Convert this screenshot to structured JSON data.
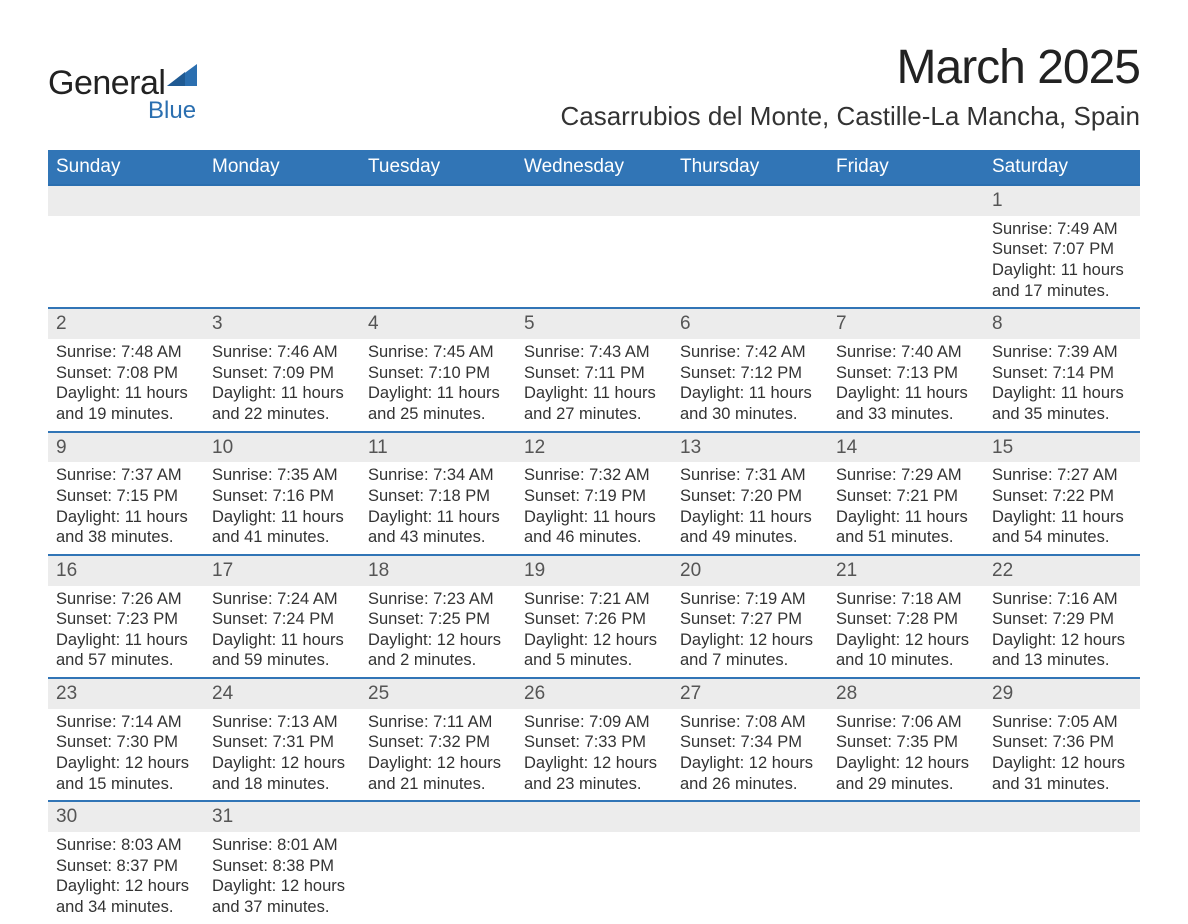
{
  "logo": {
    "main": "General",
    "sub": "Blue",
    "shape_color": "#2b6fb0"
  },
  "title": "March 2025",
  "location": "Casarrubios del Monte, Castille-La Mancha, Spain",
  "header_bg": "#3175b6",
  "header_fg": "#ffffff",
  "daynum_bg": "#ececec",
  "border_color": "#3175b6",
  "text_color": "#333333",
  "dayname_fontsize": 19,
  "body_fontsize": 16.5,
  "title_fontsize": 48,
  "location_fontsize": 26,
  "weekdays": [
    "Sunday",
    "Monday",
    "Tuesday",
    "Wednesday",
    "Thursday",
    "Friday",
    "Saturday"
  ],
  "weeks": [
    [
      null,
      null,
      null,
      null,
      null,
      null,
      {
        "n": "1",
        "sunrise": "7:49 AM",
        "sunset": "7:07 PM",
        "daylight": "11 hours and 17 minutes."
      }
    ],
    [
      {
        "n": "2",
        "sunrise": "7:48 AM",
        "sunset": "7:08 PM",
        "daylight": "11 hours and 19 minutes."
      },
      {
        "n": "3",
        "sunrise": "7:46 AM",
        "sunset": "7:09 PM",
        "daylight": "11 hours and 22 minutes."
      },
      {
        "n": "4",
        "sunrise": "7:45 AM",
        "sunset": "7:10 PM",
        "daylight": "11 hours and 25 minutes."
      },
      {
        "n": "5",
        "sunrise": "7:43 AM",
        "sunset": "7:11 PM",
        "daylight": "11 hours and 27 minutes."
      },
      {
        "n": "6",
        "sunrise": "7:42 AM",
        "sunset": "7:12 PM",
        "daylight": "11 hours and 30 minutes."
      },
      {
        "n": "7",
        "sunrise": "7:40 AM",
        "sunset": "7:13 PM",
        "daylight": "11 hours and 33 minutes."
      },
      {
        "n": "8",
        "sunrise": "7:39 AM",
        "sunset": "7:14 PM",
        "daylight": "11 hours and 35 minutes."
      }
    ],
    [
      {
        "n": "9",
        "sunrise": "7:37 AM",
        "sunset": "7:15 PM",
        "daylight": "11 hours and 38 minutes."
      },
      {
        "n": "10",
        "sunrise": "7:35 AM",
        "sunset": "7:16 PM",
        "daylight": "11 hours and 41 minutes."
      },
      {
        "n": "11",
        "sunrise": "7:34 AM",
        "sunset": "7:18 PM",
        "daylight": "11 hours and 43 minutes."
      },
      {
        "n": "12",
        "sunrise": "7:32 AM",
        "sunset": "7:19 PM",
        "daylight": "11 hours and 46 minutes."
      },
      {
        "n": "13",
        "sunrise": "7:31 AM",
        "sunset": "7:20 PM",
        "daylight": "11 hours and 49 minutes."
      },
      {
        "n": "14",
        "sunrise": "7:29 AM",
        "sunset": "7:21 PM",
        "daylight": "11 hours and 51 minutes."
      },
      {
        "n": "15",
        "sunrise": "7:27 AM",
        "sunset": "7:22 PM",
        "daylight": "11 hours and 54 minutes."
      }
    ],
    [
      {
        "n": "16",
        "sunrise": "7:26 AM",
        "sunset": "7:23 PM",
        "daylight": "11 hours and 57 minutes."
      },
      {
        "n": "17",
        "sunrise": "7:24 AM",
        "sunset": "7:24 PM",
        "daylight": "11 hours and 59 minutes."
      },
      {
        "n": "18",
        "sunrise": "7:23 AM",
        "sunset": "7:25 PM",
        "daylight": "12 hours and 2 minutes."
      },
      {
        "n": "19",
        "sunrise": "7:21 AM",
        "sunset": "7:26 PM",
        "daylight": "12 hours and 5 minutes."
      },
      {
        "n": "20",
        "sunrise": "7:19 AM",
        "sunset": "7:27 PM",
        "daylight": "12 hours and 7 minutes."
      },
      {
        "n": "21",
        "sunrise": "7:18 AM",
        "sunset": "7:28 PM",
        "daylight": "12 hours and 10 minutes."
      },
      {
        "n": "22",
        "sunrise": "7:16 AM",
        "sunset": "7:29 PM",
        "daylight": "12 hours and 13 minutes."
      }
    ],
    [
      {
        "n": "23",
        "sunrise": "7:14 AM",
        "sunset": "7:30 PM",
        "daylight": "12 hours and 15 minutes."
      },
      {
        "n": "24",
        "sunrise": "7:13 AM",
        "sunset": "7:31 PM",
        "daylight": "12 hours and 18 minutes."
      },
      {
        "n": "25",
        "sunrise": "7:11 AM",
        "sunset": "7:32 PM",
        "daylight": "12 hours and 21 minutes."
      },
      {
        "n": "26",
        "sunrise": "7:09 AM",
        "sunset": "7:33 PM",
        "daylight": "12 hours and 23 minutes."
      },
      {
        "n": "27",
        "sunrise": "7:08 AM",
        "sunset": "7:34 PM",
        "daylight": "12 hours and 26 minutes."
      },
      {
        "n": "28",
        "sunrise": "7:06 AM",
        "sunset": "7:35 PM",
        "daylight": "12 hours and 29 minutes."
      },
      {
        "n": "29",
        "sunrise": "7:05 AM",
        "sunset": "7:36 PM",
        "daylight": "12 hours and 31 minutes."
      }
    ],
    [
      {
        "n": "30",
        "sunrise": "8:03 AM",
        "sunset": "8:37 PM",
        "daylight": "12 hours and 34 minutes."
      },
      {
        "n": "31",
        "sunrise": "8:01 AM",
        "sunset": "8:38 PM",
        "daylight": "12 hours and 37 minutes."
      },
      null,
      null,
      null,
      null,
      null
    ]
  ],
  "labels": {
    "sunrise": "Sunrise:",
    "sunset": "Sunset:",
    "daylight": "Daylight:"
  }
}
